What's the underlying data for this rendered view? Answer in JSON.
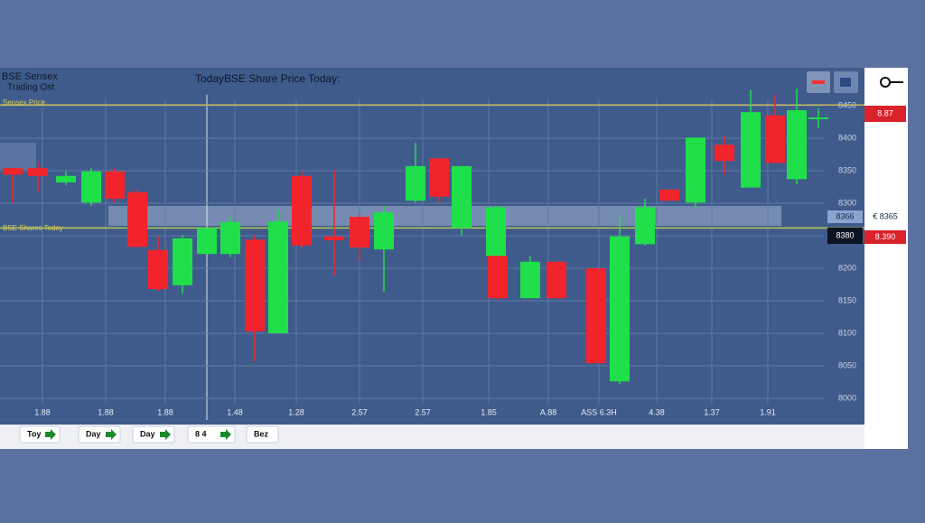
{
  "chart_data": {
    "type": "candlestick",
    "title": "TodayBSE Share Price Today:",
    "brand": [
      "BSE Sensex",
      "Trading Ost"
    ],
    "open": [
      8354,
      8354,
      8332,
      8301,
      8349,
      8317,
      8228,
      8174,
      8222,
      8222,
      8244,
      8100,
      8342,
      8249,
      8279,
      8229,
      8304,
      8369,
      8262,
      8219,
      8219,
      8154,
      8210,
      8200,
      8026,
      8237,
      8321,
      8301,
      8390,
      8324,
      8435,
      8337,
      8430
    ],
    "high": [
      8354,
      8362,
      8349,
      8354,
      8354,
      8321,
      8249,
      8251,
      8262,
      8279,
      8251,
      8290,
      8349,
      8351,
      8282,
      8296,
      8393,
      8369,
      8357,
      8296,
      8219,
      8219,
      8210,
      8200,
      8282,
      8307,
      8321,
      8401,
      8404,
      8474,
      8467,
      8476,
      8446
    ],
    "low": [
      8300,
      8318,
      8328,
      8296,
      8300,
      8231,
      8165,
      8161,
      8222,
      8217,
      8057,
      8100,
      8231,
      8189,
      8210,
      8164,
      8301,
      8301,
      8251,
      8217,
      8150,
      8154,
      8154,
      8054,
      8022,
      8235,
      8304,
      8293,
      8344,
      8324,
      8362,
      8329,
      8415
    ],
    "close": [
      8344,
      8342,
      8342,
      8349,
      8307,
      8233,
      8168,
      8246,
      8262,
      8271,
      8103,
      8272,
      8235,
      8243,
      8232,
      8286,
      8357,
      8310,
      8357,
      8294,
      8154,
      8210,
      8154,
      8054,
      8249,
      8294,
      8304,
      8401,
      8365,
      8440,
      8362,
      8443,
      8432
    ],
    "up_color": "#1fe04a",
    "down_color": "#f2242b",
    "ylim": [
      8000,
      8450
    ],
    "yticks": [
      8450,
      8400,
      8350,
      8300,
      8250,
      8200,
      8150,
      8100,
      8050,
      8000
    ],
    "x_labels": [
      "1.88",
      "1.88",
      "1.88",
      "1.48",
      "1.28",
      "2.57",
      "2.57",
      "1.85",
      "A.88",
      "ASS 6.3H",
      "4.38",
      "1.37",
      "1.91"
    ],
    "grid": true,
    "reference_lines": [
      {
        "label": "Sensex Price",
        "value": 8451,
        "color": "#c8b860"
      },
      {
        "label": "BSE Shares Today",
        "value": 8262,
        "color": "#b8c850"
      }
    ],
    "price_tags": [
      "8.87",
      "8366",
      "€ 8365",
      "8380",
      "8.390"
    ],
    "buttons": [
      "Toy",
      "Day",
      "Day",
      "8 4",
      "Bez"
    ]
  }
}
